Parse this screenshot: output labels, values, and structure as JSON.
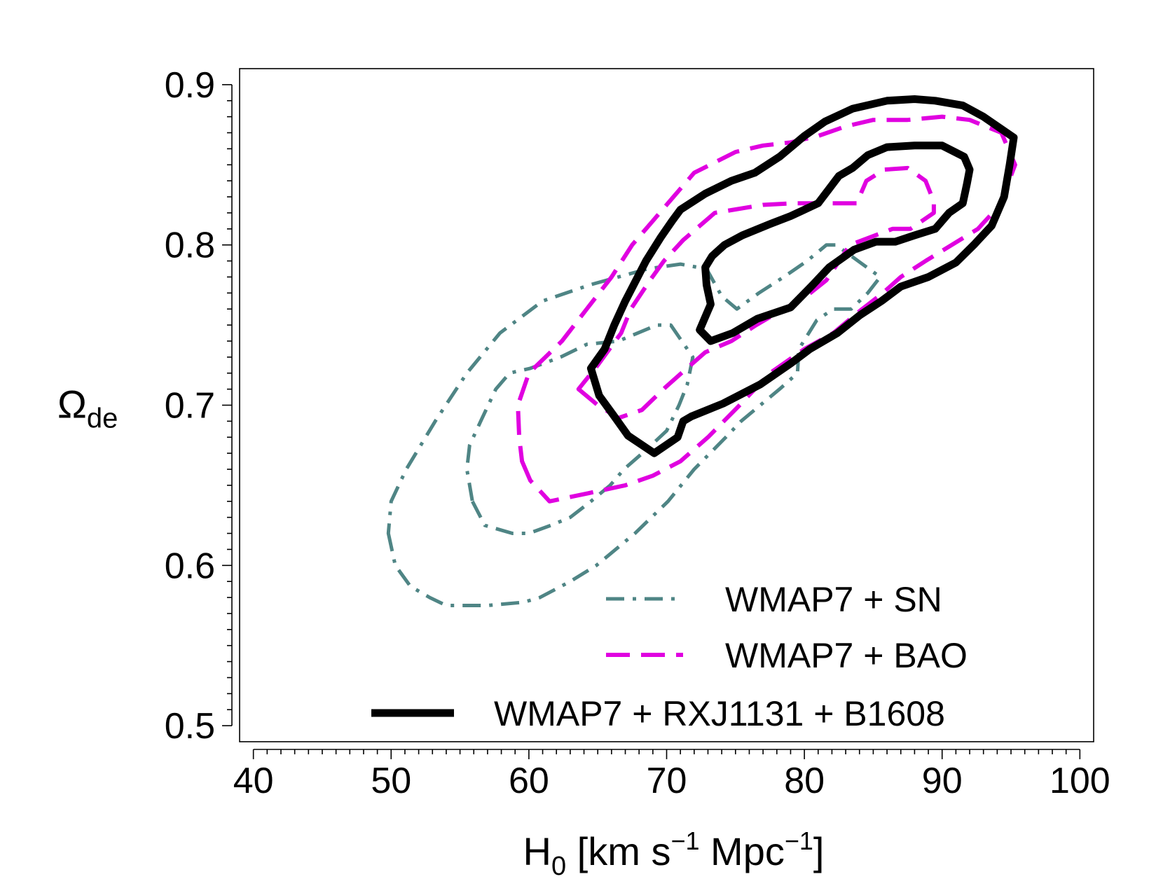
{
  "chart_data": {
    "type": "contour",
    "xlabel": {
      "main": "H",
      "sub": "0",
      "rest_open": " [km s",
      "sup1": "−1",
      "mid": " Mpc",
      "sup2": "−1",
      "close": "]"
    },
    "ylabel": {
      "main": "Ω",
      "sub": "de"
    },
    "xlim": [
      39,
      101
    ],
    "ylim": [
      0.49,
      0.91
    ],
    "x_ticks": [
      40,
      50,
      60,
      70,
      80,
      90,
      100
    ],
    "x_tick_labels": [
      "40",
      "50",
      "60",
      "70",
      "80",
      "90",
      "100"
    ],
    "y_ticks": [
      0.5,
      0.6,
      0.7,
      0.8,
      0.9
    ],
    "y_tick_labels": [
      "0.5",
      "0.6",
      "0.7",
      "0.8",
      "0.9"
    ],
    "x_minor_step": 1,
    "y_minor_step": 0.01,
    "grid": false,
    "legend_position": "bottom-right",
    "series": [
      {
        "name": "WMAP7 + SN",
        "color": "#4f8585",
        "style": "dashdot",
        "contours": [
          [
            [
              49.8,
              0.62
            ],
            [
              50.3,
              0.6
            ],
            [
              51.4,
              0.587
            ],
            [
              52.8,
              0.58
            ],
            [
              54,
              0.575
            ],
            [
              57,
              0.575
            ],
            [
              59.6,
              0.577
            ],
            [
              60.8,
              0.58
            ],
            [
              63,
              0.59
            ],
            [
              64.9,
              0.6
            ],
            [
              67.7,
              0.62
            ],
            [
              70.1,
              0.64
            ],
            [
              72,
              0.66
            ],
            [
              74.3,
              0.68
            ],
            [
              75.4,
              0.69
            ],
            [
              76.8,
              0.7
            ],
            [
              78.2,
              0.71
            ],
            [
              79.5,
              0.72
            ],
            [
              79.6,
              0.735
            ],
            [
              80.9,
              0.753
            ],
            [
              82.1,
              0.76
            ],
            [
              83.4,
              0.76
            ],
            [
              84.6,
              0.77
            ],
            [
              85.5,
              0.78
            ],
            [
              83.9,
              0.79
            ],
            [
              82.3,
              0.8
            ],
            [
              81.6,
              0.8
            ],
            [
              80.2,
              0.79
            ],
            [
              78.5,
              0.78
            ],
            [
              76.7,
              0.77
            ],
            [
              75.1,
              0.76
            ],
            [
              74,
              0.768
            ],
            [
              72.9,
              0.785
            ],
            [
              71,
              0.788
            ],
            [
              68.6,
              0.785
            ],
            [
              64.4,
              0.775
            ],
            [
              61,
              0.765
            ],
            [
              57.9,
              0.745
            ],
            [
              55.5,
              0.72
            ],
            [
              53.2,
              0.69
            ],
            [
              51.1,
              0.66
            ],
            [
              50,
              0.64
            ],
            [
              49.8,
              0.62
            ]
          ],
          [
            [
              55.9,
              0.64
            ],
            [
              56.8,
              0.625
            ],
            [
              58.8,
              0.62
            ],
            [
              60,
              0.62
            ],
            [
              61.6,
              0.625
            ],
            [
              63,
              0.63
            ],
            [
              64.5,
              0.64
            ],
            [
              65.9,
              0.65
            ],
            [
              66.9,
              0.66
            ],
            [
              68.5,
              0.672
            ],
            [
              70,
              0.684
            ],
            [
              70.9,
              0.7
            ],
            [
              71.5,
              0.713
            ],
            [
              71.9,
              0.73
            ],
            [
              70.3,
              0.75
            ],
            [
              69.3,
              0.75
            ],
            [
              66.5,
              0.74
            ],
            [
              64.2,
              0.738
            ],
            [
              62.3,
              0.73
            ],
            [
              60.1,
              0.723
            ],
            [
              58.6,
              0.72
            ],
            [
              57.6,
              0.71
            ],
            [
              56.5,
              0.69
            ],
            [
              55.7,
              0.675
            ],
            [
              55.5,
              0.66
            ],
            [
              55.9,
              0.64
            ]
          ]
        ]
      },
      {
        "name": "WMAP7 + BAO",
        "color": "#e000e0",
        "style": "dashed",
        "contours": [
          [
            [
              59.5,
              0.665
            ],
            [
              60.1,
              0.653
            ],
            [
              61.5,
              0.64
            ],
            [
              64.3,
              0.645
            ],
            [
              67,
              0.65
            ],
            [
              69,
              0.656
            ],
            [
              71,
              0.665
            ],
            [
              73,
              0.68
            ],
            [
              75.3,
              0.7
            ],
            [
              77.5,
              0.72
            ],
            [
              80,
              0.735
            ],
            [
              82.1,
              0.745
            ],
            [
              84.2,
              0.76
            ],
            [
              85.7,
              0.77
            ],
            [
              87,
              0.78
            ],
            [
              88.8,
              0.79
            ],
            [
              90.7,
              0.8
            ],
            [
              92.6,
              0.81
            ],
            [
              94.2,
              0.825
            ],
            [
              95.3,
              0.85
            ],
            [
              94.3,
              0.87
            ],
            [
              92,
              0.878
            ],
            [
              90,
              0.88
            ],
            [
              87.5,
              0.878
            ],
            [
              85,
              0.878
            ],
            [
              83,
              0.874
            ],
            [
              81,
              0.868
            ],
            [
              79,
              0.864
            ],
            [
              77,
              0.862
            ],
            [
              75,
              0.858
            ],
            [
              72,
              0.845
            ],
            [
              70.5,
              0.83
            ],
            [
              69,
              0.815
            ],
            [
              67.5,
              0.8
            ],
            [
              66,
              0.78
            ],
            [
              64.2,
              0.76
            ],
            [
              62.4,
              0.74
            ],
            [
              60,
              0.72
            ],
            [
              59.2,
              0.7
            ],
            [
              59.3,
              0.68
            ],
            [
              59.5,
              0.665
            ]
          ],
          [
            [
              63.6,
              0.71
            ],
            [
              65,
              0.7
            ],
            [
              66.5,
              0.692
            ],
            [
              68.2,
              0.697
            ],
            [
              69.9,
              0.711
            ],
            [
              71.2,
              0.721
            ],
            [
              72.8,
              0.733
            ],
            [
              74.7,
              0.74
            ],
            [
              76.5,
              0.75
            ],
            [
              78.5,
              0.76
            ],
            [
              80,
              0.767
            ],
            [
              81.6,
              0.778
            ],
            [
              83.3,
              0.8
            ],
            [
              86.4,
              0.81
            ],
            [
              87.7,
              0.81
            ],
            [
              89.4,
              0.82
            ],
            [
              89.4,
              0.827
            ],
            [
              88.8,
              0.84
            ],
            [
              87.5,
              0.848
            ],
            [
              85.8,
              0.847
            ],
            [
              84.5,
              0.84
            ],
            [
              83.8,
              0.826
            ],
            [
              81.3,
              0.826
            ],
            [
              79.2,
              0.826
            ],
            [
              77,
              0.825
            ],
            [
              73.5,
              0.82
            ],
            [
              71.2,
              0.803
            ],
            [
              69.8,
              0.79
            ],
            [
              68.8,
              0.778
            ],
            [
              67.4,
              0.76
            ],
            [
              66.7,
              0.745
            ],
            [
              65,
              0.725
            ],
            [
              63.6,
              0.71
            ]
          ]
        ]
      },
      {
        "name": "WMAP7 + RXJ1131 + B1608",
        "color": "#000000",
        "style": "solid",
        "contours": [
          [
            [
              64.5,
              0.723
            ],
            [
              65.1,
              0.706
            ],
            [
              66.2,
              0.693
            ],
            [
              67.2,
              0.681
            ],
            [
              69.1,
              0.67
            ],
            [
              70.8,
              0.68
            ],
            [
              71.2,
              0.69
            ],
            [
              71.8,
              0.693
            ],
            [
              74.1,
              0.701
            ],
            [
              76.8,
              0.713
            ],
            [
              79,
              0.726
            ],
            [
              80.4,
              0.735
            ],
            [
              82.4,
              0.745
            ],
            [
              84,
              0.756
            ],
            [
              85.6,
              0.765
            ],
            [
              87,
              0.774
            ],
            [
              89,
              0.78
            ],
            [
              91,
              0.789
            ],
            [
              92.3,
              0.8
            ],
            [
              93.6,
              0.812
            ],
            [
              94.5,
              0.83
            ],
            [
              94.9,
              0.85
            ],
            [
              95.2,
              0.867
            ],
            [
              93,
              0.88
            ],
            [
              91.5,
              0.887
            ],
            [
              89.5,
              0.89
            ],
            [
              88,
              0.891
            ],
            [
              86,
              0.89
            ],
            [
              83.5,
              0.885
            ],
            [
              81.5,
              0.877
            ],
            [
              80,
              0.868
            ],
            [
              78.2,
              0.855
            ],
            [
              76.4,
              0.845
            ],
            [
              74.7,
              0.84
            ],
            [
              72.8,
              0.832
            ],
            [
              71,
              0.822
            ],
            [
              70.4,
              0.815
            ],
            [
              69.6,
              0.805
            ],
            [
              68.5,
              0.79
            ],
            [
              67.9,
              0.78
            ],
            [
              67,
              0.765
            ],
            [
              66.2,
              0.75
            ],
            [
              65.5,
              0.735
            ],
            [
              64.5,
              0.723
            ]
          ],
          [
            [
              72.4,
              0.747
            ],
            [
              73.2,
              0.74
            ],
            [
              74.8,
              0.745
            ],
            [
              76.6,
              0.754
            ],
            [
              79,
              0.761
            ],
            [
              80.6,
              0.775
            ],
            [
              81.8,
              0.786
            ],
            [
              83.6,
              0.797
            ],
            [
              85.2,
              0.802
            ],
            [
              86.6,
              0.802
            ],
            [
              88,
              0.806
            ],
            [
              89.5,
              0.81
            ],
            [
              90.5,
              0.82
            ],
            [
              91.5,
              0.826
            ],
            [
              91.8,
              0.838
            ],
            [
              92,
              0.847
            ],
            [
              91.6,
              0.855
            ],
            [
              90,
              0.862
            ],
            [
              88,
              0.862
            ],
            [
              86,
              0.861
            ],
            [
              84.6,
              0.856
            ],
            [
              83.5,
              0.848
            ],
            [
              82.5,
              0.843
            ],
            [
              81.8,
              0.835
            ],
            [
              81,
              0.826
            ],
            [
              80,
              0.822
            ],
            [
              79,
              0.818
            ],
            [
              77.5,
              0.813
            ],
            [
              75.5,
              0.806
            ],
            [
              74.2,
              0.8
            ],
            [
              73.3,
              0.793
            ],
            [
              72.8,
              0.786
            ],
            [
              72.9,
              0.775
            ],
            [
              73.2,
              0.763
            ],
            [
              72.4,
              0.747
            ]
          ]
        ]
      }
    ]
  }
}
